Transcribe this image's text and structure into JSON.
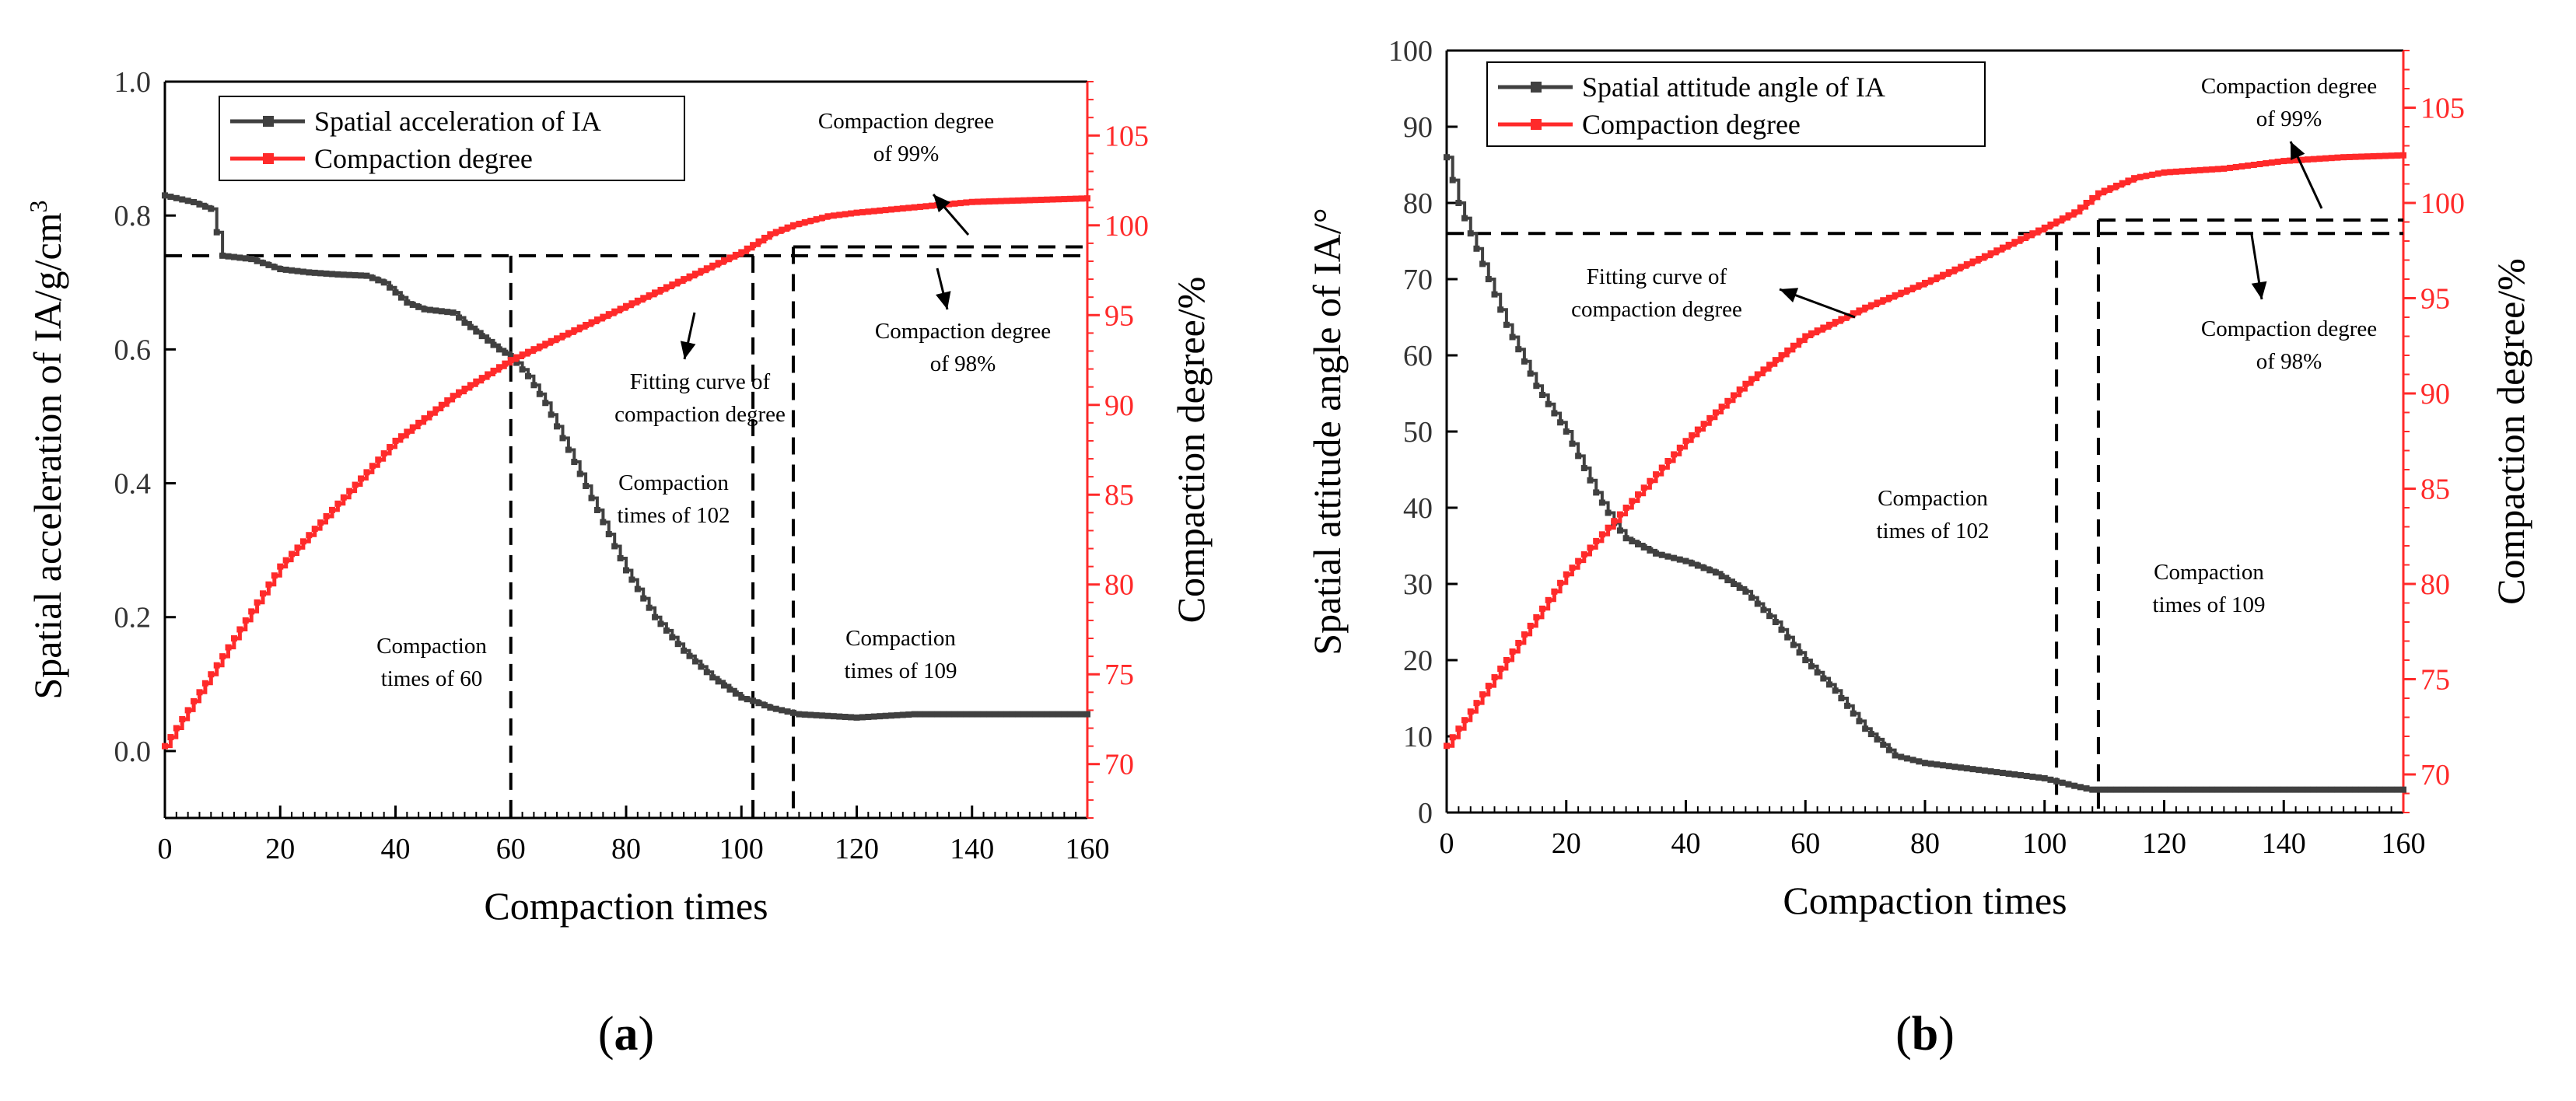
{
  "colors": {
    "series_gray": "#404040",
    "series_red": "#ff2a2a",
    "axis_black": "#000000"
  },
  "chart_data": [
    {
      "panel_label_open": "(",
      "panel_label": "a",
      "panel_label_close": ")",
      "type": "line",
      "xlabel": "Compaction times",
      "ylabel_left": "Spatial acceleration of IA/g/cm",
      "ylabel_left_sup": "3",
      "ylabel_right": "Compaction degree/%",
      "xlim": [
        0,
        160
      ],
      "ylim_left": [
        -0.1,
        1.0
      ],
      "ylim_right": [
        67,
        108
      ],
      "x_ticks": [
        "0",
        "20",
        "40",
        "60",
        "80",
        "100",
        "120",
        "140",
        "160"
      ],
      "y_left_ticks": [
        "0.0",
        "0.2",
        "0.4",
        "0.6",
        "0.8",
        "1.0"
      ],
      "y_right_ticks": [
        "70",
        "75",
        "80",
        "85",
        "90",
        "95",
        "100",
        "105"
      ],
      "legend_position": "top-left",
      "series": [
        {
          "name": "Spatial acceleration of IA",
          "axis": "left",
          "x": [
            0,
            5,
            8,
            10,
            15,
            20,
            25,
            30,
            35,
            38,
            42,
            45,
            50,
            52,
            55,
            58,
            60,
            63,
            66,
            70,
            75,
            80,
            85,
            90,
            95,
            100,
            102,
            105,
            110,
            120,
            130,
            140,
            150,
            160
          ],
          "y": [
            0.83,
            0.82,
            0.81,
            0.74,
            0.735,
            0.72,
            0.715,
            0.712,
            0.71,
            0.7,
            0.67,
            0.66,
            0.655,
            0.64,
            0.62,
            0.6,
            0.59,
            0.56,
            0.52,
            0.45,
            0.36,
            0.27,
            0.2,
            0.15,
            0.11,
            0.08,
            0.075,
            0.065,
            0.055,
            0.05,
            0.055,
            0.055,
            0.055,
            0.055
          ]
        },
        {
          "name": "Compaction degree",
          "axis": "right",
          "x": [
            0,
            10,
            20,
            30,
            40,
            50,
            55,
            60,
            70,
            80,
            90,
            100,
            102,
            105,
            109,
            115,
            120,
            130,
            140,
            150,
            160
          ],
          "y": [
            71,
            76,
            81,
            84.5,
            88,
            90.5,
            91.5,
            92.5,
            94,
            95.5,
            97,
            98.5,
            98.9,
            99.5,
            100,
            100.5,
            100.7,
            101,
            101.3,
            101.4,
            101.5
          ]
        }
      ],
      "reference_lines": {
        "horizontal_left_value": 0.74,
        "horizontal_right_value": 98.8,
        "vertical_x": [
          60,
          102,
          109
        ]
      },
      "annotations": [
        {
          "lines": [
            "Compaction degree",
            "of 99%"
          ]
        },
        {
          "lines": [
            "Compaction degree",
            "of 98%"
          ]
        },
        {
          "lines": [
            "Fitting curve of",
            "compaction degree"
          ]
        },
        {
          "lines": [
            "Compaction",
            "times of 102"
          ]
        },
        {
          "lines": [
            "Compaction",
            "times of 60"
          ]
        },
        {
          "lines": [
            "Compaction",
            "times of 109"
          ]
        }
      ]
    },
    {
      "panel_label_open": "(",
      "panel_label": "b",
      "panel_label_close": ")",
      "type": "line",
      "xlabel": "Compaction times",
      "ylabel_left": "Spatial attitude angle of IA/°",
      "ylabel_right": "Compaction degree/%",
      "xlim": [
        0,
        160
      ],
      "ylim_left": [
        0,
        100
      ],
      "ylim_right": [
        68,
        108
      ],
      "x_ticks": [
        "0",
        "20",
        "40",
        "60",
        "80",
        "100",
        "120",
        "140",
        "160"
      ],
      "y_left_ticks": [
        "0",
        "10",
        "20",
        "30",
        "40",
        "50",
        "60",
        "70",
        "80",
        "90",
        "100"
      ],
      "y_right_ticks": [
        "70",
        "75",
        "80",
        "85",
        "90",
        "95",
        "100",
        "105"
      ],
      "legend_position": "top-left",
      "series": [
        {
          "name": "Spatial attitude angle of IA",
          "axis": "left",
          "x": [
            0,
            2,
            5,
            10,
            15,
            20,
            25,
            28,
            30,
            35,
            40,
            45,
            50,
            55,
            60,
            65,
            70,
            75,
            80,
            90,
            100,
            105,
            108,
            110,
            120,
            130,
            140,
            150,
            160
          ],
          "y": [
            86,
            80,
            74,
            64,
            56,
            50,
            42,
            38,
            36,
            34,
            33,
            31.5,
            29,
            25,
            20,
            16,
            11,
            7.5,
            6.5,
            5.5,
            4.5,
            3.5,
            3,
            3,
            3,
            3,
            3,
            3,
            3
          ]
        },
        {
          "name": "Compaction degree",
          "axis": "right",
          "x": [
            0,
            10,
            20,
            30,
            40,
            50,
            60,
            70,
            80,
            90,
            100,
            105,
            109,
            115,
            120,
            130,
            140,
            150,
            160
          ],
          "y": [
            71.5,
            76,
            80.5,
            84,
            87.5,
            90.5,
            93,
            94.5,
            95.8,
            97.2,
            98.7,
            99.5,
            100.5,
            101.3,
            101.6,
            101.8,
            102.2,
            102.4,
            102.5
          ]
        }
      ],
      "reference_lines": {
        "horizontal_left_value": 76,
        "horizontal_right_value": 99.1,
        "vertical_x": [
          102,
          109
        ]
      },
      "annotations": [
        {
          "lines": [
            "Compaction degree",
            "of 99%"
          ]
        },
        {
          "lines": [
            "Fitting curve of",
            "compaction degree"
          ]
        },
        {
          "lines": [
            "Compaction degree",
            "of 98%"
          ]
        },
        {
          "lines": [
            "Compaction",
            "times of 102"
          ]
        },
        {
          "lines": [
            "Compaction",
            "times of 109"
          ]
        }
      ]
    }
  ]
}
